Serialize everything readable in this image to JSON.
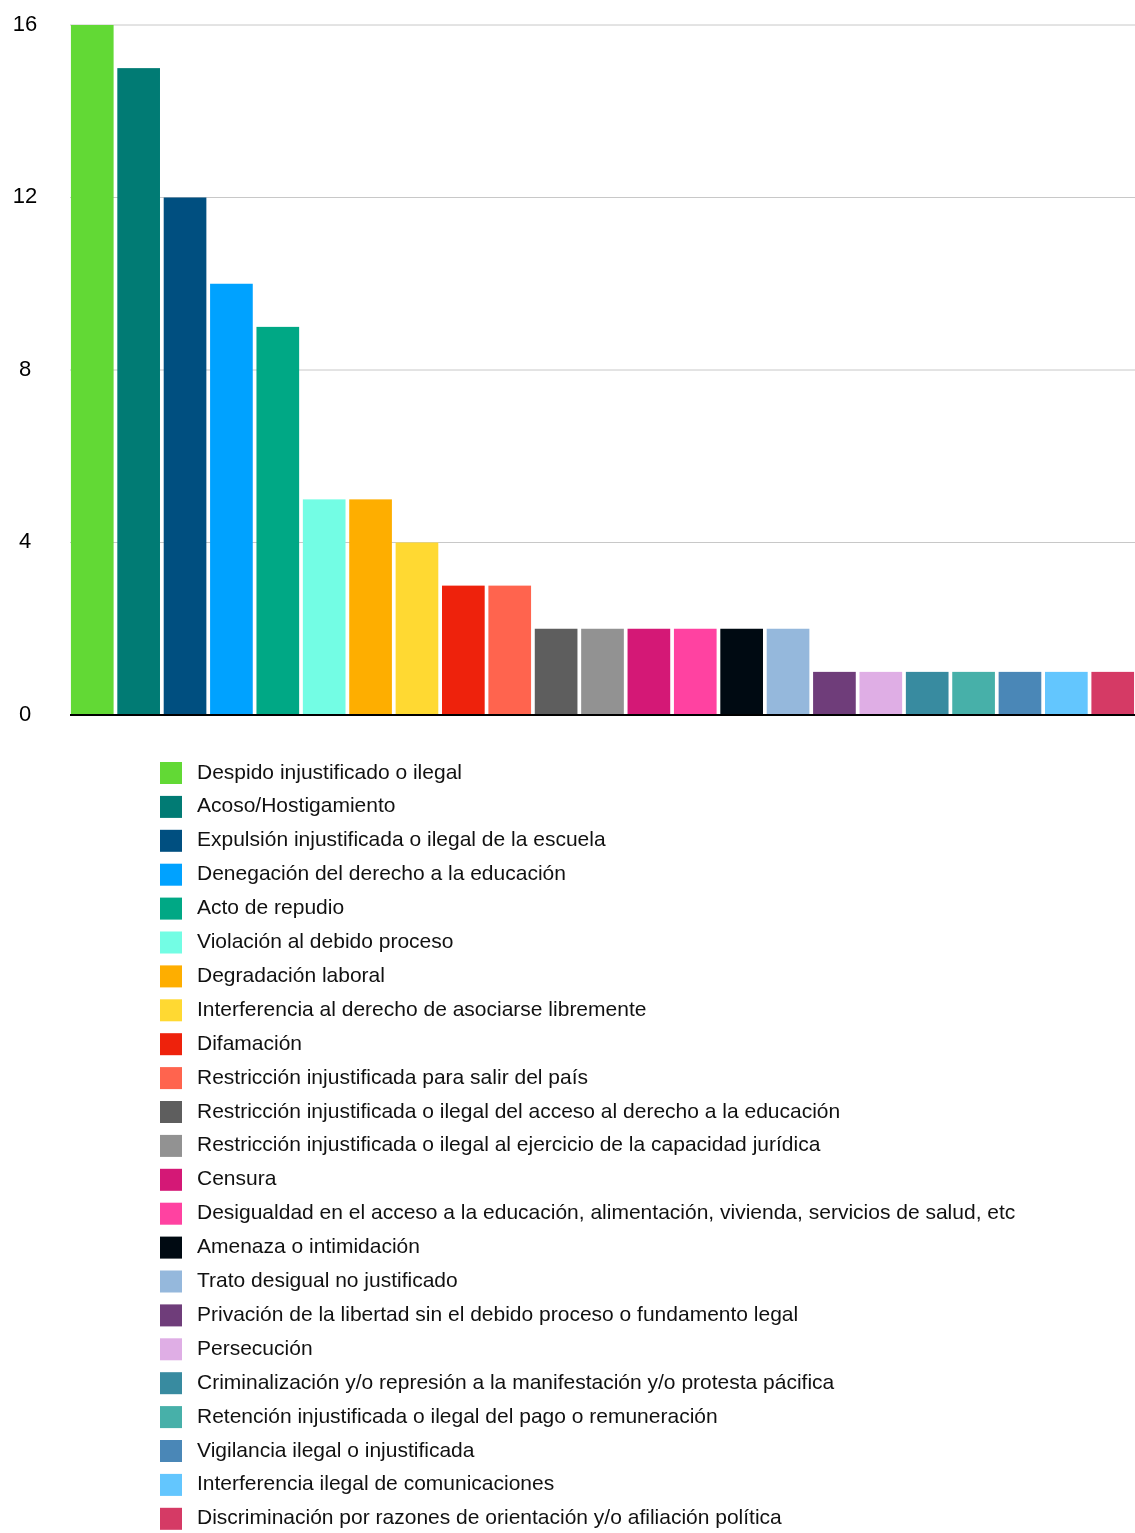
{
  "chart_data": {
    "type": "bar",
    "categories": [
      null,
      null,
      null,
      null,
      null,
      null,
      null,
      null,
      null,
      null,
      null,
      null,
      null,
      null,
      null,
      null,
      null,
      null,
      null,
      null,
      null,
      null,
      null
    ],
    "ylim": [
      0,
      16
    ],
    "yticks": [
      0,
      4,
      8,
      12,
      16
    ],
    "grid": "y",
    "legend": "bottom",
    "series": [
      {
        "name": "Despido injustificado o ilegal",
        "color": "#62d935",
        "values": [
          16,
          null,
          null,
          null,
          null,
          null,
          null,
          null,
          null,
          null,
          null,
          null,
          null,
          null,
          null,
          null,
          null,
          null,
          null,
          null,
          null,
          null,
          null
        ]
      },
      {
        "name": "Acoso/Hostigamiento",
        "color": "#017b74",
        "values": [
          null,
          15,
          null,
          null,
          null,
          null,
          null,
          null,
          null,
          null,
          null,
          null,
          null,
          null,
          null,
          null,
          null,
          null,
          null,
          null,
          null,
          null,
          null
        ]
      },
      {
        "name": "Expulsión injustificada o ilegal de la escuela",
        "color": "#004f80",
        "values": [
          null,
          null,
          12,
          null,
          null,
          null,
          null,
          null,
          null,
          null,
          null,
          null,
          null,
          null,
          null,
          null,
          null,
          null,
          null,
          null,
          null,
          null,
          null
        ]
      },
      {
        "name": "Denegación del derecho a la educación",
        "color": "#00a2ff",
        "values": [
          null,
          null,
          null,
          10,
          null,
          null,
          null,
          null,
          null,
          null,
          null,
          null,
          null,
          null,
          null,
          null,
          null,
          null,
          null,
          null,
          null,
          null,
          null
        ]
      },
      {
        "name": "Acto de repudio",
        "color": "#00a885",
        "values": [
          null,
          null,
          null,
          null,
          9,
          null,
          null,
          null,
          null,
          null,
          null,
          null,
          null,
          null,
          null,
          null,
          null,
          null,
          null,
          null,
          null,
          null,
          null
        ]
      },
      {
        "name": "Violación al debido proceso",
        "color": "#73fde4",
        "values": [
          null,
          null,
          null,
          null,
          null,
          5,
          null,
          null,
          null,
          null,
          null,
          null,
          null,
          null,
          null,
          null,
          null,
          null,
          null,
          null,
          null,
          null,
          null
        ]
      },
      {
        "name": "Degradación laboral",
        "color": "#feae00",
        "values": [
          null,
          null,
          null,
          null,
          null,
          null,
          5,
          null,
          null,
          null,
          null,
          null,
          null,
          null,
          null,
          null,
          null,
          null,
          null,
          null,
          null,
          null,
          null
        ]
      },
      {
        "name": "Interferencia al derecho de asociarse libremente",
        "color": "#ffd932",
        "values": [
          null,
          null,
          null,
          null,
          null,
          null,
          null,
          4,
          null,
          null,
          null,
          null,
          null,
          null,
          null,
          null,
          null,
          null,
          null,
          null,
          null,
          null,
          null
        ]
      },
      {
        "name": "Difamación",
        "color": "#ee220c",
        "values": [
          null,
          null,
          null,
          null,
          null,
          null,
          null,
          null,
          3,
          null,
          null,
          null,
          null,
          null,
          null,
          null,
          null,
          null,
          null,
          null,
          null,
          null,
          null
        ]
      },
      {
        "name": "Restricción injustificada para salir del país",
        "color": "#ff644e",
        "values": [
          null,
          null,
          null,
          null,
          null,
          null,
          null,
          null,
          null,
          3,
          null,
          null,
          null,
          null,
          null,
          null,
          null,
          null,
          null,
          null,
          null,
          null,
          null
        ]
      },
      {
        "name": "Restricción injustificada o ilegal del acceso al derecho a la educación",
        "color": "#5e5e5e",
        "values": [
          null,
          null,
          null,
          null,
          null,
          null,
          null,
          null,
          null,
          null,
          2,
          null,
          null,
          null,
          null,
          null,
          null,
          null,
          null,
          null,
          null,
          null,
          null
        ]
      },
      {
        "name": "Restricción injustificada o ilegal al ejercicio de la capacidad jurídica",
        "color": "#929292",
        "values": [
          null,
          null,
          null,
          null,
          null,
          null,
          null,
          null,
          null,
          null,
          null,
          2,
          null,
          null,
          null,
          null,
          null,
          null,
          null,
          null,
          null,
          null,
          null
        ]
      },
      {
        "name": "Censura",
        "color": "#d41876",
        "values": [
          null,
          null,
          null,
          null,
          null,
          null,
          null,
          null,
          null,
          null,
          null,
          null,
          2,
          null,
          null,
          null,
          null,
          null,
          null,
          null,
          null,
          null,
          null
        ]
      },
      {
        "name": "Desigualdad en el acceso a la educación, alimentación, vivienda, servicios de salud, etc",
        "color": "#ff42a1",
        "values": [
          null,
          null,
          null,
          null,
          null,
          null,
          null,
          null,
          null,
          null,
          null,
          null,
          null,
          2,
          null,
          null,
          null,
          null,
          null,
          null,
          null,
          null,
          null
        ]
      },
      {
        "name": "Amenaza o intimidación",
        "color": "#000a12",
        "values": [
          null,
          null,
          null,
          null,
          null,
          null,
          null,
          null,
          null,
          null,
          null,
          null,
          null,
          null,
          2,
          null,
          null,
          null,
          null,
          null,
          null,
          null,
          null
        ]
      },
      {
        "name": "Trato desigual no justificado",
        "color": "#95b8dc",
        "values": [
          null,
          null,
          null,
          null,
          null,
          null,
          null,
          null,
          null,
          null,
          null,
          null,
          null,
          null,
          null,
          2,
          null,
          null,
          null,
          null,
          null,
          null,
          null
        ]
      },
      {
        "name": "Privación de la libertad sin el debido proceso o fundamento legal",
        "color": "#6f3d7a",
        "values": [
          null,
          null,
          null,
          null,
          null,
          null,
          null,
          null,
          null,
          null,
          null,
          null,
          null,
          null,
          null,
          null,
          1,
          null,
          null,
          null,
          null,
          null,
          null
        ]
      },
      {
        "name": "Persecución",
        "color": "#dfaee5",
        "values": [
          null,
          null,
          null,
          null,
          null,
          null,
          null,
          null,
          null,
          null,
          null,
          null,
          null,
          null,
          null,
          null,
          null,
          1,
          null,
          null,
          null,
          null,
          null
        ]
      },
      {
        "name": "Criminalización y/o represión a la manifestación y/o protesta pácifica",
        "color": "#388ba0",
        "values": [
          null,
          null,
          null,
          null,
          null,
          null,
          null,
          null,
          null,
          null,
          null,
          null,
          null,
          null,
          null,
          null,
          null,
          null,
          1,
          null,
          null,
          null,
          null
        ]
      },
      {
        "name": "Retención injustificada o ilegal del pago o remuneración",
        "color": "#47b0a9",
        "values": [
          null,
          null,
          null,
          null,
          null,
          null,
          null,
          null,
          null,
          null,
          null,
          null,
          null,
          null,
          null,
          null,
          null,
          null,
          null,
          1,
          null,
          null,
          null
        ]
      },
      {
        "name": "Vigilancia ilegal o injustificada",
        "color": "#4a87b7",
        "values": [
          null,
          null,
          null,
          null,
          null,
          null,
          null,
          null,
          null,
          null,
          null,
          null,
          null,
          null,
          null,
          null,
          null,
          null,
          null,
          null,
          1,
          null,
          null
        ]
      },
      {
        "name": "Interferencia ilegal de comunicaciones",
        "color": "#63c6fe",
        "values": [
          null,
          null,
          null,
          null,
          null,
          null,
          null,
          null,
          null,
          null,
          null,
          null,
          null,
          null,
          null,
          null,
          null,
          null,
          null,
          null,
          null,
          1,
          null
        ]
      },
      {
        "name": "Discriminación por razones de orientación y/o afiliación política",
        "color": "#d53a65",
        "values": [
          null,
          null,
          null,
          null,
          null,
          null,
          null,
          null,
          null,
          null,
          null,
          null,
          null,
          null,
          null,
          null,
          null,
          null,
          null,
          null,
          null,
          null,
          1
        ]
      }
    ]
  }
}
